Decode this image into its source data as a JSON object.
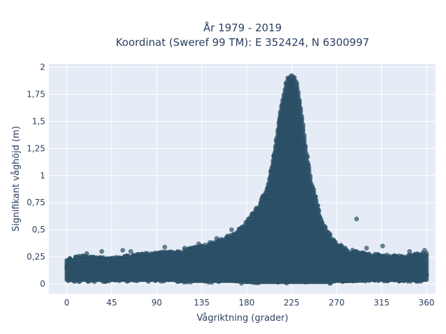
{
  "chart_data": {
    "type": "scatter",
    "title": "År 1979 - 2019",
    "subtitle": "Koordinat (Sweref 99 TM): E 352424, N 6300997",
    "xlabel": "Vågriktning (grader)",
    "ylabel": "Signifikant våghöjd (m)",
    "xlim": [
      -18,
      369
    ],
    "ylim": [
      -0.09,
      2.03
    ],
    "x_ticks": [
      0,
      45,
      90,
      135,
      180,
      225,
      270,
      315,
      360
    ],
    "x_tick_labels": [
      "0",
      "45",
      "90",
      "135",
      "180",
      "225",
      "270",
      "315",
      "360"
    ],
    "y_ticks": [
      0,
      0.25,
      0.5,
      0.75,
      1,
      1.25,
      1.5,
      1.75,
      2
    ],
    "y_tick_labels": [
      "0",
      "0,25",
      "0,5",
      "0,75",
      "1",
      "1,25",
      "1,5",
      "1,75",
      "2"
    ],
    "grid": true,
    "marker_color": "#2f566e",
    "background_color": "#e5ecf6",
    "envelope": {
      "description_x": [
        0,
        15,
        30,
        45,
        60,
        75,
        90,
        105,
        120,
        135,
        150,
        165,
        180,
        190,
        200,
        205,
        210,
        215,
        220,
        225,
        230,
        235,
        240,
        245,
        250,
        255,
        260,
        270,
        280,
        290,
        300,
        315,
        330,
        345,
        360
      ],
      "upper_y": [
        0.24,
        0.26,
        0.25,
        0.24,
        0.26,
        0.28,
        0.29,
        0.3,
        0.32,
        0.36,
        0.4,
        0.46,
        0.58,
        0.7,
        0.88,
        1.08,
        1.38,
        1.7,
        1.9,
        1.95,
        1.88,
        1.6,
        1.22,
        0.95,
        0.78,
        0.6,
        0.5,
        0.38,
        0.33,
        0.3,
        0.28,
        0.27,
        0.26,
        0.27,
        0.3
      ],
      "lower_y": [
        0.02,
        0.02,
        0.02,
        0.02,
        0.02,
        0.02,
        0.02,
        0.02,
        0.01,
        0.01,
        0.01,
        0.01,
        0.0,
        0.0,
        0.0,
        0.0,
        0.0,
        0.0,
        0.0,
        0.0,
        0.0,
        0.0,
        0.0,
        0.0,
        0.0,
        0.0,
        0.0,
        0.01,
        0.01,
        0.01,
        0.02,
        0.02,
        0.02,
        0.02,
        0.02
      ]
    },
    "outliers": [
      {
        "x": 20,
        "y": 0.28
      },
      {
        "x": 35,
        "y": 0.3
      },
      {
        "x": 56,
        "y": 0.31
      },
      {
        "x": 64,
        "y": 0.3
      },
      {
        "x": 98,
        "y": 0.34
      },
      {
        "x": 118,
        "y": 0.33
      },
      {
        "x": 132,
        "y": 0.37
      },
      {
        "x": 150,
        "y": 0.42
      },
      {
        "x": 165,
        "y": 0.5
      },
      {
        "x": 290,
        "y": 0.6
      },
      {
        "x": 300,
        "y": 0.33
      },
      {
        "x": 316,
        "y": 0.35
      },
      {
        "x": 343,
        "y": 0.3
      },
      {
        "x": 358,
        "y": 0.31
      }
    ]
  }
}
